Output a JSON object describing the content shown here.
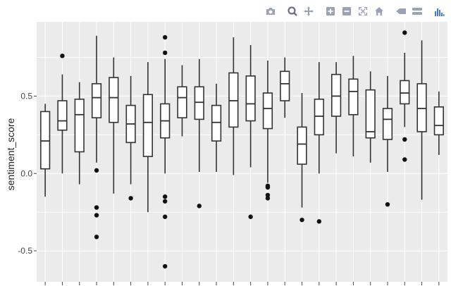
{
  "modebar": {
    "buttons": [
      {
        "name": "camera-icon",
        "group": 0
      },
      {
        "name": "zoom-icon",
        "group": 1,
        "active": true
      },
      {
        "name": "pan-icon",
        "group": 1
      },
      {
        "name": "zoom-in-icon",
        "group": 2
      },
      {
        "name": "zoom-out-icon",
        "group": 2
      },
      {
        "name": "autoscale-icon",
        "group": 2
      },
      {
        "name": "reset-axes-icon",
        "group": 2
      },
      {
        "name": "spike-lines-icon",
        "group": 3
      },
      {
        "name": "hover-compare-icon",
        "group": 3
      },
      {
        "name": "plotly-logo-icon",
        "group": 4
      }
    ]
  },
  "chart_data": {
    "type": "box",
    "ylabel": "sentiment_score",
    "ylim": [
      -0.7,
      0.98
    ],
    "yticks": [
      -0.5,
      0.0,
      0.5
    ],
    "ytick_labels": [
      "-0.5",
      "0.0",
      "0.5"
    ],
    "grid": true,
    "background": "#ebebeb",
    "grid_color": "#ffffff",
    "box_fill": "#ffffff",
    "box_stroke": "#333333",
    "n_categories": 24,
    "series": [
      {
        "q1": 0.03,
        "median": 0.21,
        "q3": 0.4,
        "lower": -0.15,
        "upper": 0.45,
        "outliers": []
      },
      {
        "q1": 0.28,
        "median": 0.34,
        "q3": 0.47,
        "lower": 0.0,
        "upper": 0.64,
        "outliers": [
          0.76
        ]
      },
      {
        "q1": 0.14,
        "median": 0.38,
        "q3": 0.48,
        "lower": -0.07,
        "upper": 0.59,
        "outliers": []
      },
      {
        "q1": 0.36,
        "median": 0.49,
        "q3": 0.58,
        "lower": 0.07,
        "upper": 0.89,
        "outliers": [
          0.02,
          -0.22,
          -0.27,
          -0.41
        ]
      },
      {
        "q1": 0.33,
        "median": 0.49,
        "q3": 0.62,
        "lower": -0.13,
        "upper": 0.75,
        "outliers": []
      },
      {
        "q1": 0.2,
        "median": 0.32,
        "q3": 0.44,
        "lower": -0.07,
        "upper": 0.63,
        "outliers": [
          -0.16
        ]
      },
      {
        "q1": 0.11,
        "median": 0.33,
        "q3": 0.51,
        "lower": -0.25,
        "upper": 0.72,
        "outliers": []
      },
      {
        "q1": 0.23,
        "median": 0.34,
        "q3": 0.45,
        "lower": 0.0,
        "upper": 0.74,
        "outliers": [
          0.88,
          0.78,
          -0.15,
          -0.18,
          -0.28,
          -0.6
        ]
      },
      {
        "q1": 0.36,
        "median": 0.49,
        "q3": 0.56,
        "lower": 0.24,
        "upper": 0.7,
        "outliers": []
      },
      {
        "q1": 0.35,
        "median": 0.46,
        "q3": 0.56,
        "lower": 0.01,
        "upper": 0.74,
        "outliers": [
          -0.21
        ]
      },
      {
        "q1": 0.21,
        "median": 0.33,
        "q3": 0.44,
        "lower": 0.01,
        "upper": 0.58,
        "outliers": []
      },
      {
        "q1": 0.3,
        "median": 0.47,
        "q3": 0.65,
        "lower": -0.01,
        "upper": 0.88,
        "outliers": []
      },
      {
        "q1": 0.34,
        "median": 0.45,
        "q3": 0.63,
        "lower": 0.04,
        "upper": 0.83,
        "outliers": [
          -0.28
        ]
      },
      {
        "q1": 0.29,
        "median": 0.42,
        "q3": 0.52,
        "lower": -0.06,
        "upper": 0.73,
        "outliers": [
          -0.08,
          -0.09,
          -0.14,
          -0.16
        ]
      },
      {
        "q1": 0.47,
        "median": 0.58,
        "q3": 0.66,
        "lower": 0.36,
        "upper": 0.75,
        "outliers": []
      },
      {
        "q1": 0.06,
        "median": 0.19,
        "q3": 0.3,
        "lower": -0.22,
        "upper": 0.52,
        "outliers": [
          -0.3
        ]
      },
      {
        "q1": 0.25,
        "median": 0.37,
        "q3": 0.48,
        "lower": 0.0,
        "upper": 0.72,
        "outliers": [
          -0.31
        ]
      },
      {
        "q1": 0.37,
        "median": 0.5,
        "q3": 0.64,
        "lower": 0.13,
        "upper": 0.72,
        "outliers": []
      },
      {
        "q1": 0.38,
        "median": 0.53,
        "q3": 0.61,
        "lower": 0.11,
        "upper": 0.76,
        "outliers": []
      },
      {
        "q1": 0.23,
        "median": 0.27,
        "q3": 0.54,
        "lower": 0.07,
        "upper": 0.66,
        "outliers": []
      },
      {
        "q1": 0.22,
        "median": 0.35,
        "q3": 0.42,
        "lower": 0.01,
        "upper": 0.63,
        "outliers": [
          -0.2
        ]
      },
      {
        "q1": 0.45,
        "median": 0.52,
        "q3": 0.6,
        "lower": 0.3,
        "upper": 0.78,
        "outliers": [
          0.91,
          0.22,
          0.09
        ]
      },
      {
        "q1": 0.27,
        "median": 0.42,
        "q3": 0.58,
        "lower": -0.17,
        "upper": 0.86,
        "outliers": []
      },
      {
        "q1": 0.25,
        "median": 0.31,
        "q3": 0.43,
        "lower": 0.12,
        "upper": 0.53,
        "outliers": []
      }
    ]
  }
}
